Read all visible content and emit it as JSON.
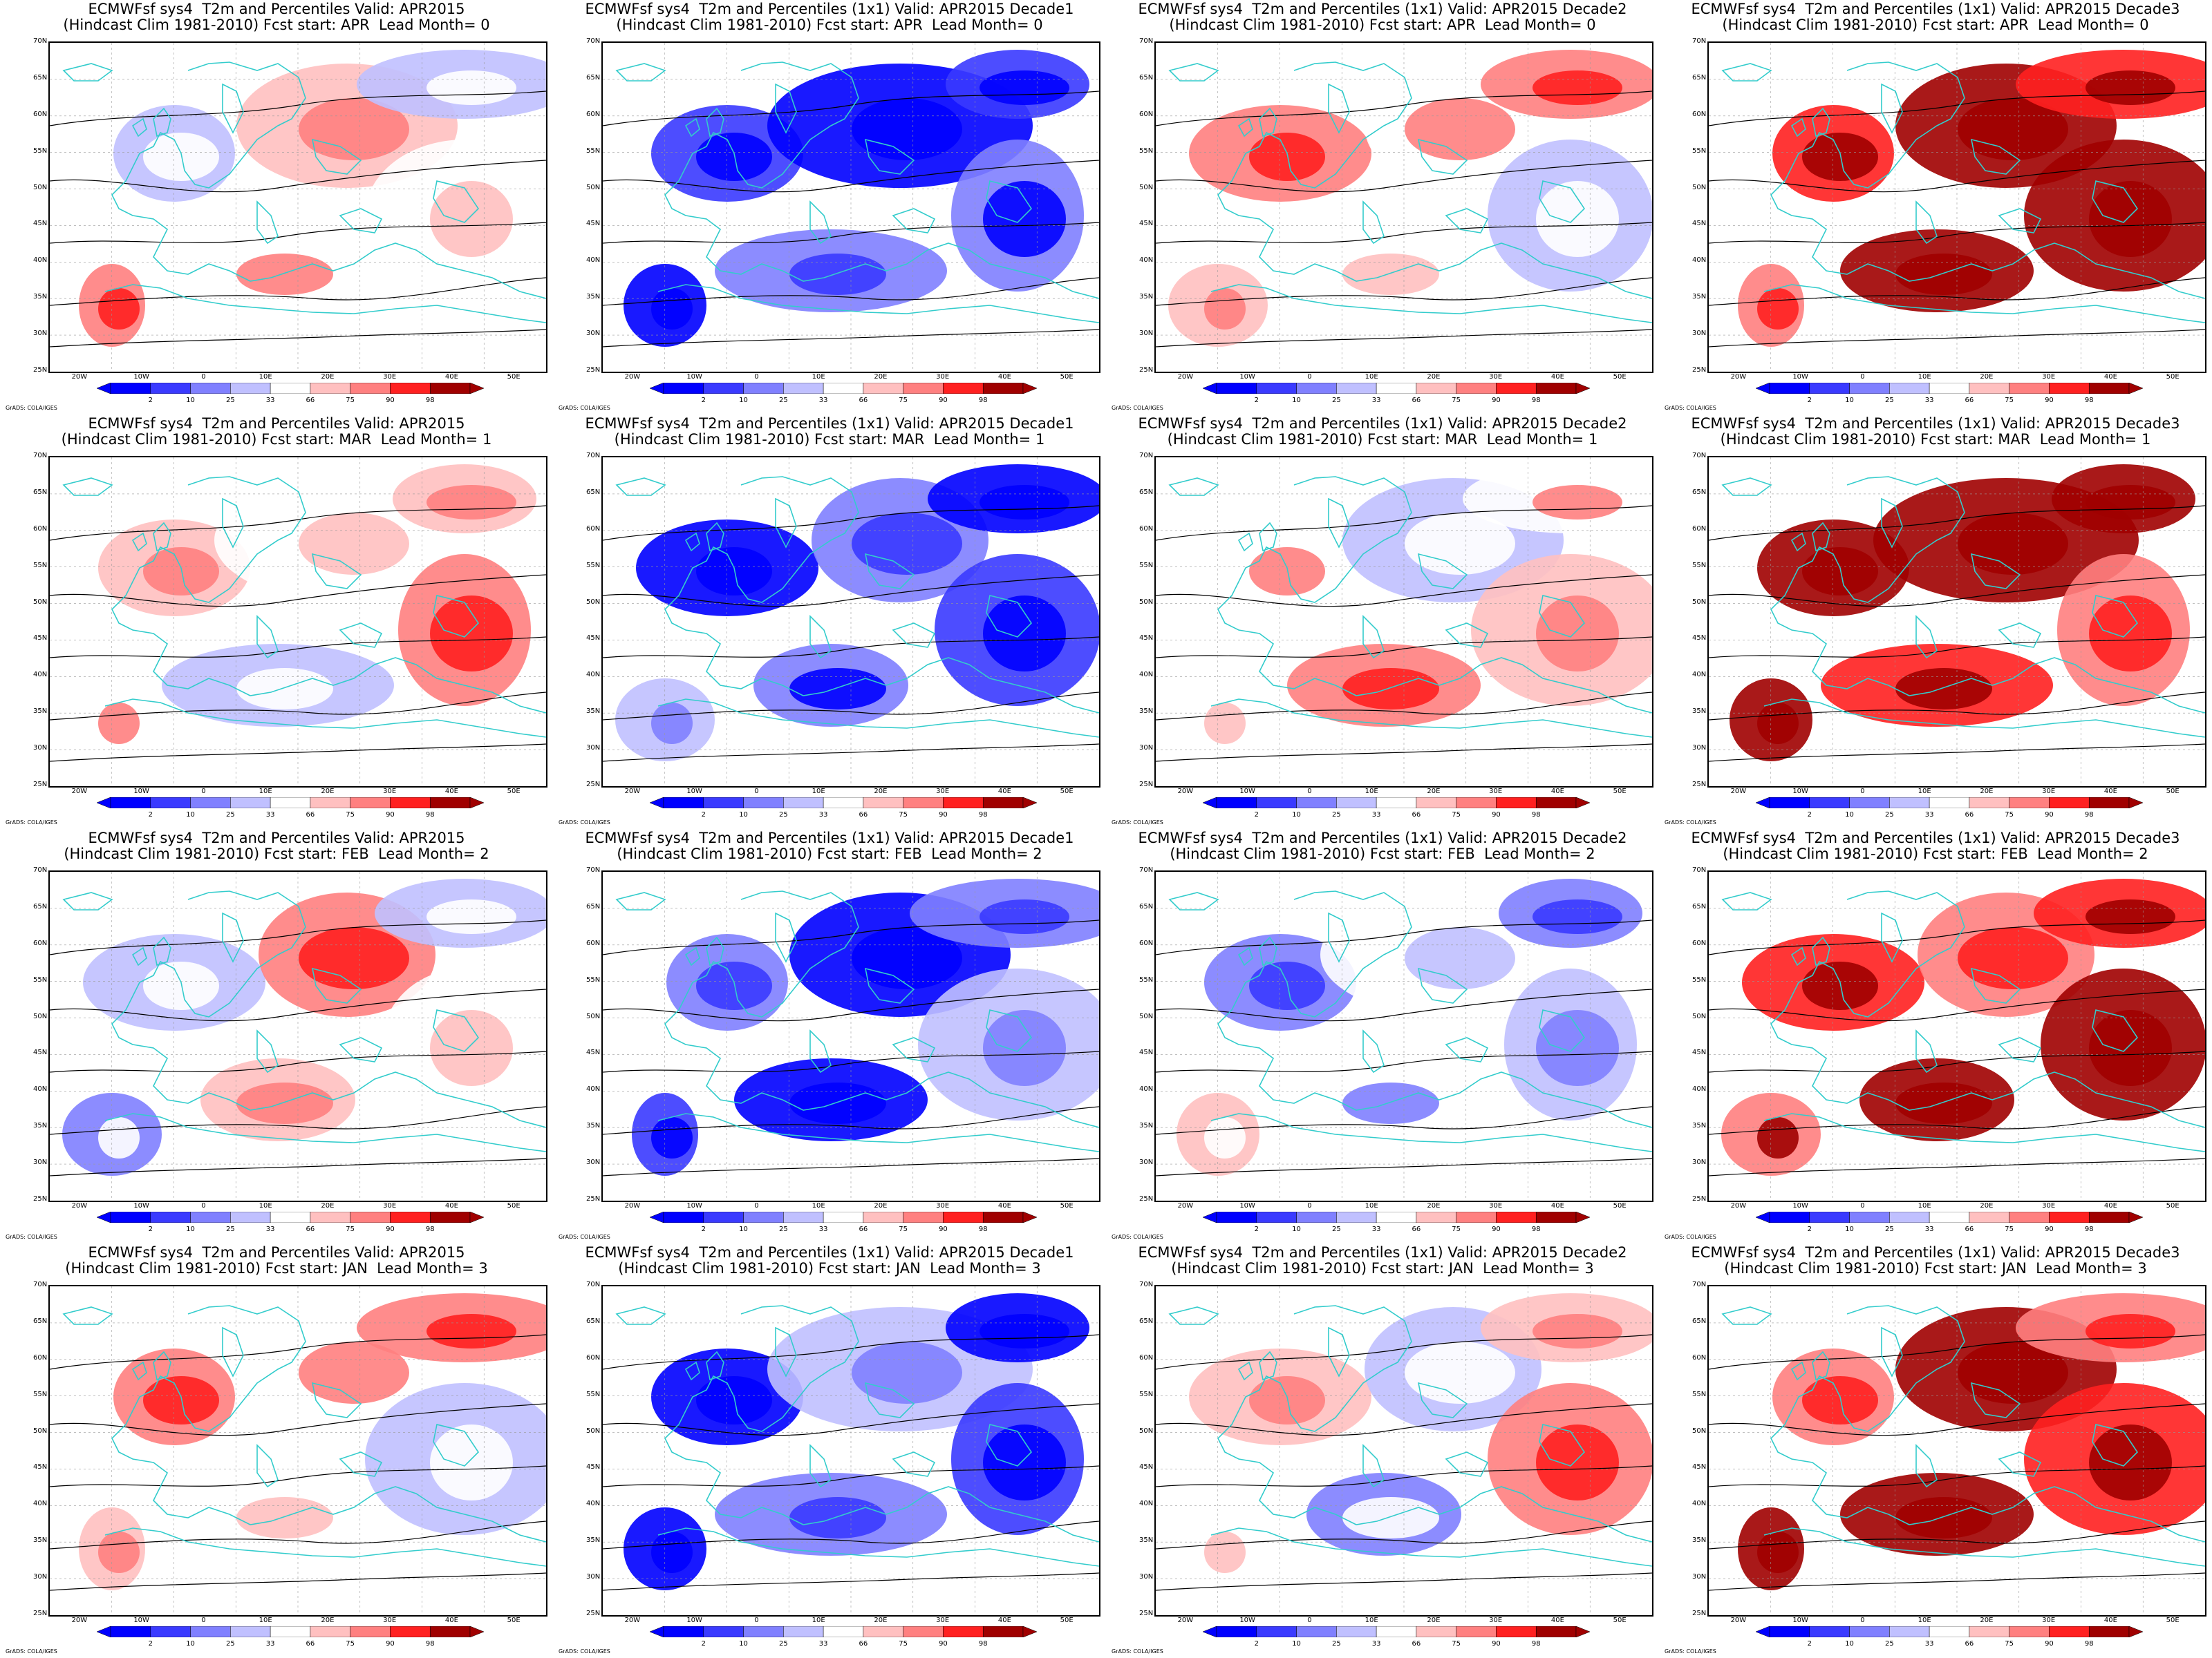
{
  "panels": [
    {
      "title1": "ECMWFsf sys4  T2m and Percentiles Valid: APR2015",
      "title2": "(Hindcast Clim 1981-2010) Fcst start: APR  Lead Month= 0",
      "level": 0.55
    },
    {
      "title1": "ECMWFsf sys4  T2m and Percentiles (1x1) Valid: APR2015 Decade1",
      "title2": "(Hindcast Clim 1981-2010) Fcst start: APR  Lead Month= 0",
      "level": 0.1
    },
    {
      "title1": "ECMWFsf sys4  T2m and Percentiles (1x1) Valid: APR2015 Decade2",
      "title2": "(Hindcast Clim 1981-2010) Fcst start: APR  Lead Month= 0",
      "level": 0.55
    },
    {
      "title1": "ECMWFsf sys4  T2m and Percentiles (1x1) Valid: APR2015 Decade3",
      "title2": "(Hindcast Clim 1981-2010) Fcst start: APR  Lead Month= 0",
      "level": 0.95
    },
    {
      "title1": "ECMWFsf sys4  T2m and Percentiles Valid: APR2015",
      "title2": "(Hindcast Clim 1981-2010) Fcst start: MAR  Lead Month= 1",
      "level": 0.55
    },
    {
      "title1": "ECMWFsf sys4  T2m and Percentiles (1x1) Valid: APR2015 Decade1",
      "title2": "(Hindcast Clim 1981-2010) Fcst start: MAR  Lead Month= 1",
      "level": 0.2
    },
    {
      "title1": "ECMWFsf sys4  T2m and Percentiles (1x1) Valid: APR2015 Decade2",
      "title2": "(Hindcast Clim 1981-2010) Fcst start: MAR  Lead Month= 1",
      "level": 0.55
    },
    {
      "title1": "ECMWFsf sys4  T2m and Percentiles (1x1) Valid: APR2015 Decade3",
      "title2": "(Hindcast Clim 1981-2010) Fcst start: MAR  Lead Month= 1",
      "level": 0.95
    },
    {
      "title1": "ECMWFsf sys4  T2m and Percentiles Valid: APR2015",
      "title2": "(Hindcast Clim 1981-2010) Fcst start: FEB  Lead Month= 2",
      "level": 0.5
    },
    {
      "title1": "ECMWFsf sys4  T2m and Percentiles (1x1) Valid: APR2015 Decade1",
      "title2": "(Hindcast Clim 1981-2010) Fcst start: FEB  Lead Month= 2",
      "level": 0.15
    },
    {
      "title1": "ECMWFsf sys4  T2m and Percentiles (1x1) Valid: APR2015 Decade2",
      "title2": "(Hindcast Clim 1981-2010) Fcst start: FEB  Lead Month= 2",
      "level": 0.45
    },
    {
      "title1": "ECMWFsf sys4  T2m and Percentiles (1x1) Valid: APR2015 Decade3",
      "title2": "(Hindcast Clim 1981-2010) Fcst start: FEB  Lead Month= 2",
      "level": 0.9
    },
    {
      "title1": "ECMWFsf sys4  T2m and Percentiles Valid: APR2015",
      "title2": "(Hindcast Clim 1981-2010) Fcst start: JAN  Lead Month= 3",
      "level": 0.55
    },
    {
      "title1": "ECMWFsf sys4  T2m and Percentiles (1x1) Valid: APR2015 Decade1",
      "title2": "(Hindcast Clim 1981-2010) Fcst start: JAN  Lead Month= 3",
      "level": 0.15
    },
    {
      "title1": "ECMWFsf sys4  T2m and Percentiles (1x1) Valid: APR2015 Decade2",
      "title2": "(Hindcast Clim 1981-2010) Fcst start: JAN  Lead Month= 3",
      "level": 0.5
    },
    {
      "title1": "ECMWFsf sys4  T2m and Percentiles (1x1) Valid: APR2015 Decade3",
      "title2": "(Hindcast Clim 1981-2010) Fcst start: JAN  Lead Month= 3",
      "level": 0.95
    }
  ],
  "lat_labels": [
    "70N",
    "65N",
    "60N",
    "55N",
    "50N",
    "45N",
    "40N",
    "35N",
    "30N",
    "25N"
  ],
  "lon_labels": [
    "20W",
    "10W",
    "0",
    "10E",
    "20E",
    "30E",
    "40E",
    "50E"
  ],
  "colorbar_labels": [
    "2",
    "10",
    "25",
    "33",
    "66",
    "75",
    "90",
    "98"
  ],
  "colorbar_colors": [
    "#0000ff",
    "#3a3aff",
    "#8080ff",
    "#c0c0ff",
    "#ffffff",
    "#ffc0c0",
    "#ff8080",
    "#ff2020",
    "#a00000"
  ],
  "credit": "GrADS: COLA/IGES",
  "colors": {
    "coast": "#33cccc",
    "contour": "#000000"
  }
}
